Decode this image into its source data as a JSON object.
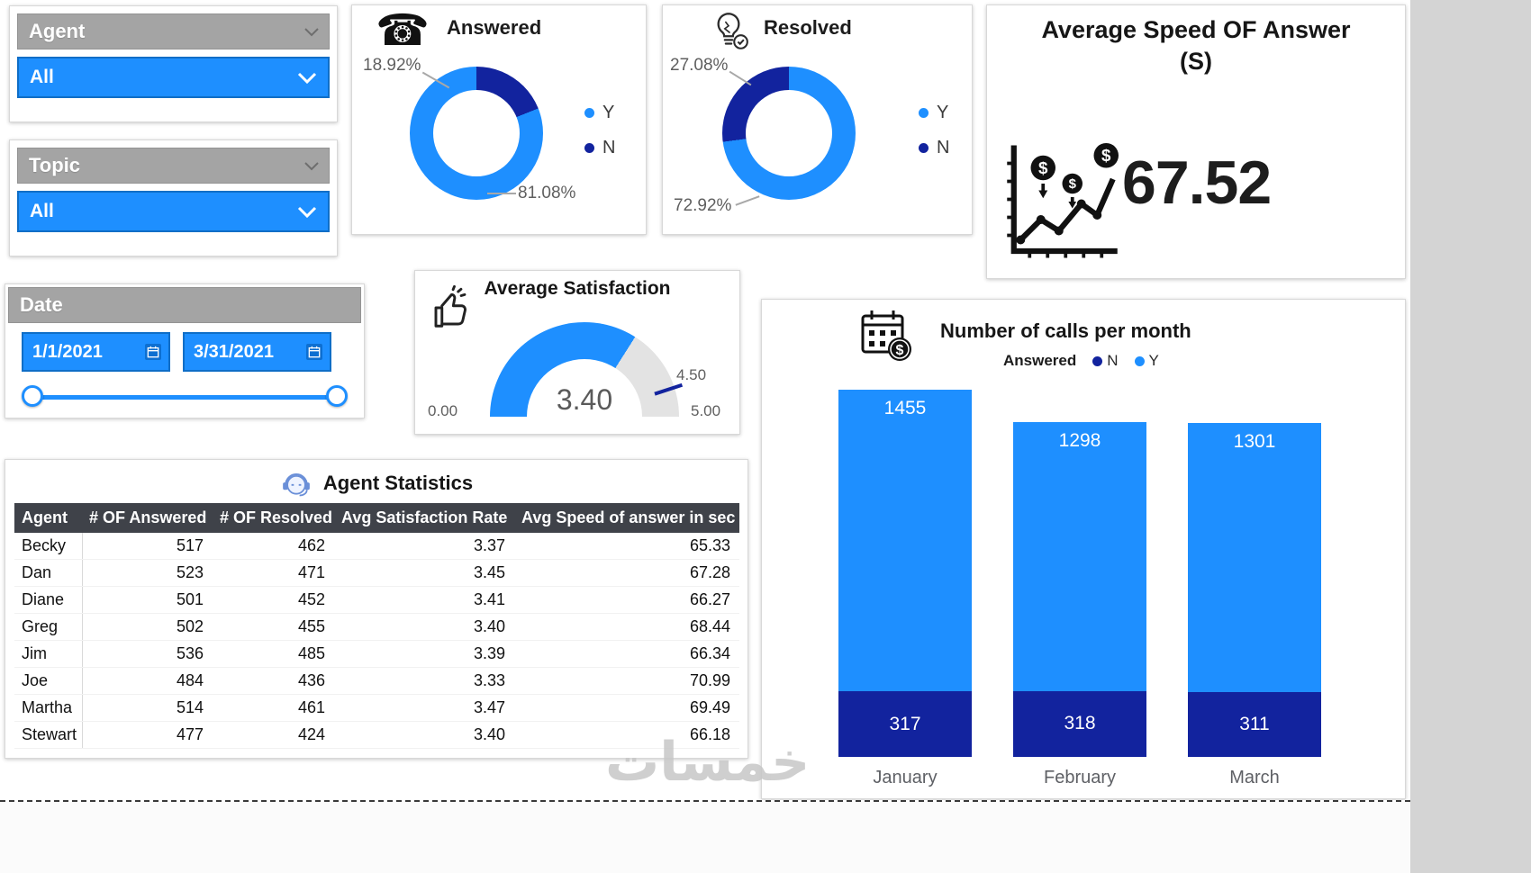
{
  "ui": {
    "watermark": "خمسات",
    "slicers": {
      "agent": {
        "title": "Agent",
        "value": "All"
      },
      "topic": {
        "title": "Topic",
        "value": "All"
      },
      "date": {
        "title": "Date",
        "start": "1/1/2021",
        "end": "3/31/2021"
      }
    },
    "answered": {
      "title": "Answered",
      "pct_small": "18.92%",
      "pct_large": "81.08%",
      "legend_y": "Y",
      "legend_n": "N"
    },
    "resolved": {
      "title": "Resolved",
      "pct_small": "27.08%",
      "pct_large": "72.92%",
      "legend_y": "Y",
      "legend_n": "N"
    },
    "avg_speed": {
      "title_line1": "Average Speed OF Answer",
      "title_line2": "(S)",
      "value": "67.52"
    },
    "satisfaction": {
      "title": "Average Satisfaction",
      "value": "3.40",
      "min": "0.00",
      "max": "5.00",
      "target": "4.50"
    },
    "table": {
      "title": "Agent Statistics"
    },
    "bars": {
      "title": "Number of calls per month",
      "legend_title": "Answered",
      "legend_n": "N",
      "legend_y": "Y"
    }
  },
  "colors": {
    "bright_blue": "#1E8FFF",
    "dark_blue": "#12239E",
    "track_gray": "#e3e3e3",
    "slicer_gray": "#a4a4a4"
  },
  "chart_data": [
    {
      "id": "answered",
      "type": "pie",
      "title": "Answered",
      "labels": [
        "Y",
        "N"
      ],
      "values": [
        81.08,
        18.92
      ],
      "unit": "%",
      "colors": [
        "#1E8FFF",
        "#12239E"
      ],
      "legend_position": "right"
    },
    {
      "id": "resolved",
      "type": "pie",
      "title": "Resolved",
      "labels": [
        "Y",
        "N"
      ],
      "values": [
        72.92,
        27.08
      ],
      "unit": "%",
      "colors": [
        "#1E8FFF",
        "#12239E"
      ],
      "legend_position": "right"
    },
    {
      "id": "satisfaction",
      "type": "gauge",
      "title": "Average Satisfaction",
      "value": 3.4,
      "min": 0.0,
      "max": 5.0,
      "target": 4.5
    },
    {
      "id": "avg_speed",
      "type": "card",
      "title": "Average Speed OF Answer (S)",
      "value": 67.52
    },
    {
      "id": "calls_per_month",
      "type": "bar",
      "stacked": true,
      "title": "Number of calls per month",
      "categories": [
        "January",
        "February",
        "March"
      ],
      "series": [
        {
          "name": "Y",
          "color": "#1E8FFF",
          "values": [
            1455,
            1298,
            1301
          ]
        },
        {
          "name": "N",
          "color": "#12239E",
          "values": [
            317,
            318,
            311
          ]
        }
      ],
      "legend_title": "Answered",
      "legend_position": "top",
      "ylim": [
        0,
        1772
      ],
      "grid": false
    },
    {
      "id": "agent_stats",
      "type": "table",
      "title": "Agent Statistics",
      "columns": [
        "Agent",
        "# OF Answered",
        "# OF Resolved",
        "Avg Satisfaction Rate",
        "Avg Speed of answer in sec"
      ],
      "rows": [
        [
          "Becky",
          "517",
          "462",
          "3.37",
          "65.33"
        ],
        [
          "Dan",
          "523",
          "471",
          "3.45",
          "67.28"
        ],
        [
          "Diane",
          "501",
          "452",
          "3.41",
          "66.27"
        ],
        [
          "Greg",
          "502",
          "455",
          "3.40",
          "68.44"
        ],
        [
          "Jim",
          "536",
          "485",
          "3.39",
          "66.34"
        ],
        [
          "Joe",
          "484",
          "436",
          "3.33",
          "70.99"
        ],
        [
          "Martha",
          "514",
          "461",
          "3.47",
          "69.49"
        ],
        [
          "Stewart",
          "477",
          "424",
          "3.40",
          "66.18"
        ]
      ]
    }
  ]
}
